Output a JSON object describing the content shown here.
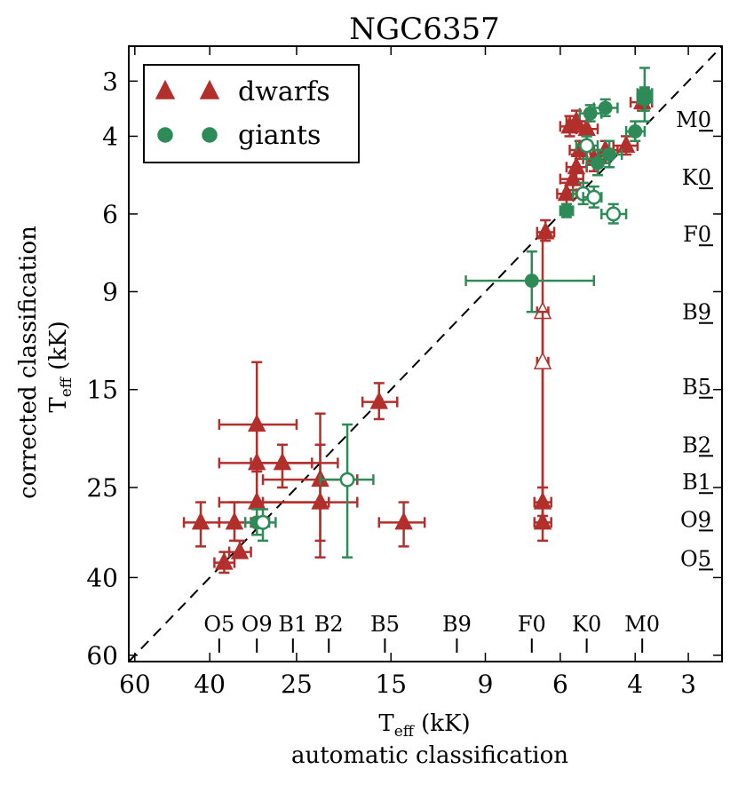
{
  "chart_data": {
    "type": "scatter",
    "title": "NGC6357",
    "xlabel": {
      "symbol": "T",
      "subscript": "eff",
      "unit": " (kK)",
      "line2": "automatic classification"
    },
    "ylabel": {
      "symbol": "T",
      "subscript": "eff",
      "unit": " (kK)",
      "line1": "corrected classification"
    },
    "scale": "log",
    "xlim": [
      62,
      2.5
    ],
    "ylim": [
      62,
      2.5
    ],
    "x_ticks": [
      {
        "value": 60,
        "label": "60"
      },
      {
        "value": 40,
        "label": "40"
      },
      {
        "value": 25,
        "label": "25"
      },
      {
        "value": 15,
        "label": "15"
      },
      {
        "value": 9,
        "label": "9"
      },
      {
        "value": 6,
        "label": "6"
      },
      {
        "value": 4,
        "label": "4"
      },
      {
        "value": 3,
        "label": "3"
      }
    ],
    "y_ticks": [
      {
        "value": 3,
        "label": "3"
      },
      {
        "value": 4,
        "label": "4"
      },
      {
        "value": 6,
        "label": "6"
      },
      {
        "value": 9,
        "label": "9"
      },
      {
        "value": 15,
        "label": "15"
      },
      {
        "value": 25,
        "label": "25"
      },
      {
        "value": 40,
        "label": "40"
      },
      {
        "value": 60,
        "label": "60"
      }
    ],
    "spectral_types": [
      {
        "label": "O5",
        "value": 38
      },
      {
        "label": "O9",
        "value": 31
      },
      {
        "label": "B1",
        "value": 25.5
      },
      {
        "label": "B2",
        "value": 21
      },
      {
        "label": "B5",
        "value": 15.5
      },
      {
        "label": "B9",
        "value": 10.5
      },
      {
        "label": "F0",
        "value": 7
      },
      {
        "label": "K0",
        "value": 5.2
      },
      {
        "label": "M0",
        "value": 3.85
      }
    ],
    "diagonal": true,
    "colors": {
      "dwarfs": "#b22f2b",
      "giants": "#2e8b57"
    },
    "legend": {
      "position": "top-left",
      "entries": [
        {
          "label": "dwarfs",
          "marker": "triangle",
          "color": "#b22f2b"
        },
        {
          "label": "giants",
          "marker": "circle",
          "color": "#2e8b57"
        }
      ]
    },
    "series": [
      {
        "name": "dwarfs",
        "marker": "triangle",
        "color": "#b22f2b",
        "points": [
          {
            "x": 42,
            "y": 30,
            "xerr": [
              46,
              38
            ],
            "yerr": [
              34,
              27
            ]
          },
          {
            "x": 35,
            "y": 30,
            "xerr": [
              38,
              32
            ],
            "yerr": [
              33,
              27
            ]
          },
          {
            "x": 37,
            "y": 37,
            "xerr": [
              39,
              35
            ],
            "yerr": [
              39,
              35
            ]
          },
          {
            "x": 34,
            "y": 35,
            "xerr": [
              36,
              32
            ],
            "yerr": [
              36,
              33
            ]
          },
          {
            "x": 31,
            "y": 18,
            "xerr": [
              38,
              25
            ],
            "yerr": [
              23,
              13
            ]
          },
          {
            "x": 31,
            "y": 22,
            "xerr": [
              38,
              20
            ],
            "yerr": [
              27,
              18
            ]
          },
          {
            "x": 31,
            "y": 27,
            "xerr": [
              38,
              21
            ],
            "yerr": [
              32,
              22
            ]
          },
          {
            "x": 27,
            "y": 22,
            "xerr": [
              32,
              23
            ],
            "yerr": [
              25,
              20
            ]
          },
          {
            "x": 22,
            "y": 24,
            "xerr": [
              30,
              18
            ],
            "yerr": [
              33,
              17
            ]
          },
          {
            "x": 22,
            "y": 27,
            "xerr": [
              30,
              18
            ],
            "yerr": [
              36,
              20
            ]
          },
          {
            "x": 16,
            "y": 16,
            "xerr": [
              17.5,
              14.5
            ],
            "yerr": [
              17.5,
              14.5
            ]
          },
          {
            "x": 14,
            "y": 30,
            "xerr": [
              16,
              12.5
            ],
            "yerr": [
              34,
              27
            ]
          },
          {
            "x": 6.6,
            "y": 27,
            "xerr": [
              6.9,
              6.3
            ],
            "yerr": [
              29,
              25
            ]
          },
          {
            "x": 6.6,
            "y": 30,
            "xerr": [
              6.9,
              6.3
            ],
            "yerr": [
              33,
              27
            ]
          },
          {
            "x": 6.5,
            "y": 6.6,
            "xerr": [
              6.8,
              6.2
            ],
            "yerr": [
              6.9,
              6.2
            ]
          },
          {
            "x": 5.8,
            "y": 5.4,
            "xerr": [
              6.1,
              5.5
            ],
            "yerr": [
              5.7,
              5.1
            ]
          },
          {
            "x": 5.6,
            "y": 5.0,
            "xerr": [
              6.0,
              5.3
            ],
            "yerr": [
              5.3,
              4.7
            ]
          },
          {
            "x": 5.5,
            "y": 4.7,
            "xerr": [
              5.8,
              5.2
            ],
            "yerr": [
              5.0,
              4.4
            ]
          },
          {
            "x": 5.7,
            "y": 3.8,
            "xerr": [
              6.0,
              5.4
            ],
            "yerr": [
              4.0,
              3.6
            ]
          },
          {
            "x": 5.5,
            "y": 3.7,
            "xerr": [
              5.8,
              5.2
            ],
            "yerr": [
              3.9,
              3.5
            ]
          },
          {
            "x": 5.2,
            "y": 3.85,
            "xerr": [
              5.5,
              4.9
            ],
            "yerr": [
              4.0,
              3.7
            ]
          },
          {
            "x": 5.4,
            "y": 4.3,
            "xerr": [
              5.7,
              5.1
            ],
            "yerr": [
              4.5,
              4.1
            ]
          },
          {
            "x": 5.0,
            "y": 4.5,
            "xerr": [
              5.3,
              4.7
            ],
            "yerr": [
              4.8,
              4.3
            ]
          },
          {
            "x": 4.7,
            "y": 4.3,
            "xerr": [
              5.0,
              4.4
            ],
            "yerr": [
              4.6,
              4.1
            ]
          },
          {
            "x": 4.2,
            "y": 4.2,
            "xerr": [
              4.5,
              3.95
            ],
            "yerr": [
              4.4,
              4.0
            ]
          },
          {
            "x": 3.85,
            "y": 3.35,
            "xerr": [
              4.1,
              3.65
            ],
            "yerr": [
              3.5,
              3.2
            ]
          }
        ]
      },
      {
        "name": "dwarfs (open)",
        "marker": "triangle-open",
        "color": "#b22f2b",
        "points": [
          {
            "x": 6.6,
            "y": 10,
            "xerr": [
              6.8,
              6.4
            ],
            "yerr": [
              6.6,
              30
            ]
          },
          {
            "x": 6.6,
            "y": 13,
            "xerr": [
              6.8,
              6.4
            ],
            "yerr": [
              10,
              27
            ]
          }
        ]
      },
      {
        "name": "giants",
        "marker": "circle",
        "color": "#2e8b57",
        "points": [
          {
            "x": 31,
            "y": 30,
            "xerr": [
              33,
              29
            ],
            "yerr": [
              32,
              28
            ]
          },
          {
            "x": 7.0,
            "y": 8.5,
            "xerr": [
              10,
              5.0
            ],
            "yerr": [
              10,
              7.3
            ]
          },
          {
            "x": 5.8,
            "y": 5.9,
            "xerr": [
              6.0,
              5.6
            ],
            "yerr": [
              6.1,
              5.7
            ]
          },
          {
            "x": 4.7,
            "y": 3.45,
            "xerr": [
              5.0,
              4.4
            ],
            "yerr": [
              3.6,
              3.3
            ]
          },
          {
            "x": 5.1,
            "y": 3.55,
            "xerr": [
              5.4,
              4.8
            ],
            "yerr": [
              3.7,
              3.4
            ]
          },
          {
            "x": 4.0,
            "y": 3.9,
            "xerr": [
              4.2,
              3.8
            ],
            "yerr": [
              4.1,
              3.7
            ]
          },
          {
            "x": 3.8,
            "y": 3.2,
            "xerr": [
              3.95,
              3.65
            ],
            "yerr": [
              2.8,
              3.7
            ]
          },
          {
            "x": 3.8,
            "y": 3.3,
            "xerr": [
              3.95,
              3.65
            ],
            "yerr": [
              3.1,
              3.5
            ]
          },
          {
            "x": 4.6,
            "y": 4.4,
            "xerr": [
              4.9,
              4.3
            ],
            "yerr": [
              4.7,
              4.1
            ]
          },
          {
            "x": 4.9,
            "y": 4.6,
            "xerr": [
              5.2,
              4.6
            ],
            "yerr": [
              4.9,
              4.3
            ]
          }
        ]
      },
      {
        "name": "giants (open)",
        "marker": "circle-open",
        "color": "#2e8b57",
        "points": [
          {
            "x": 30,
            "y": 30,
            "xerr": [
              33,
              28
            ],
            "yerr": [
              33,
              28
            ]
          },
          {
            "x": 19,
            "y": 24,
            "xerr": [
              22,
              16.5
            ],
            "yerr": [
              18,
              36
            ]
          },
          {
            "x": 5.2,
            "y": 4.2,
            "xerr": [
              5.5,
              4.9
            ],
            "yerr": [
              4.5,
              4.0
            ]
          },
          {
            "x": 5.3,
            "y": 5.4,
            "xerr": [
              5.6,
              5.0
            ],
            "yerr": [
              5.7,
              5.1
            ]
          },
          {
            "x": 5.0,
            "y": 5.5,
            "xerr": [
              5.3,
              4.8
            ],
            "yerr": [
              5.8,
              5.2
            ]
          },
          {
            "x": 4.5,
            "y": 6.0,
            "xerr": [
              4.8,
              4.2
            ],
            "yerr": [
              6.3,
              5.7
            ]
          }
        ]
      }
    ]
  }
}
